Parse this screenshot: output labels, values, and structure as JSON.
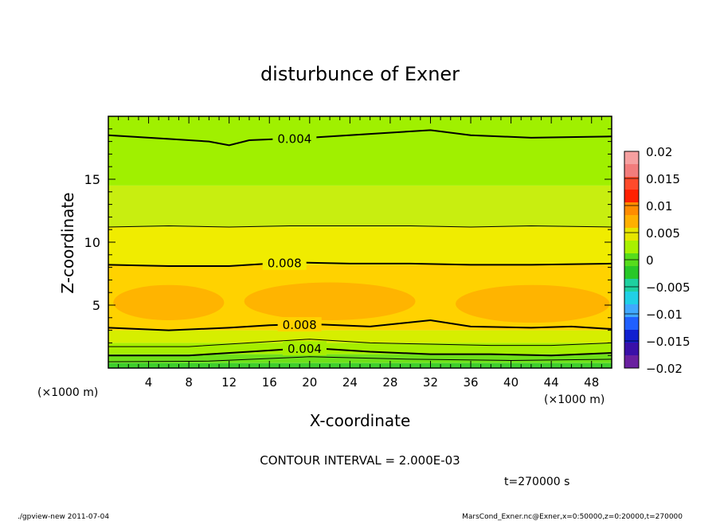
{
  "chart_data": {
    "type": "heatmap",
    "title": "disturbunce of Exner",
    "xlabel": "X-coordinate",
    "ylabel": "Z-coordinate",
    "x_unit": "(×1000 m)",
    "y_unit": "(×1000 m)",
    "xlim": [
      0,
      50
    ],
    "ylim": [
      0,
      20
    ],
    "x_ticks": [
      "4",
      "8",
      "12",
      "16",
      "20",
      "24",
      "28",
      "32",
      "36",
      "40",
      "44",
      "48"
    ],
    "y_ticks": [
      "5",
      "10",
      "15"
    ],
    "contour_interval": "CONTOUR INTERVAL = 2.000E-03",
    "time_label": "t=270000 s",
    "contour_labels": [
      "0.004",
      "0.008",
      "0.008",
      "0.004"
    ],
    "colorbar": {
      "tick_labels": [
        "0.02",
        "0.015",
        "0.01",
        "0.005",
        "0",
        "−0.005",
        "−0.01",
        "−0.015",
        "−0.02"
      ],
      "levels": [
        0.02,
        0.0175,
        0.015,
        0.0125,
        0.01,
        0.0075,
        0.005,
        0.0025,
        0,
        -0.0025,
        -0.005,
        -0.0075,
        -0.01,
        -0.0125,
        -0.015,
        -0.0175,
        -0.02
      ],
      "colors": [
        "#f6a0a0",
        "#f27c7c",
        "#ff4a2a",
        "#ff2000",
        "#ff8c00",
        "#ffb000",
        "#e6e600",
        "#a8f000",
        "#56dc1c",
        "#28c828",
        "#1ed0a0",
        "#20d0e6",
        "#40a8ff",
        "#2060ff",
        "#1020d0",
        "#3a10a8",
        "#6a20a0"
      ]
    },
    "bands": [
      {
        "z_from": 0.0,
        "z_to": 0.4,
        "value": 0.002,
        "color": "#3ecf2c"
      },
      {
        "z_from": 0.4,
        "z_to": 1.1,
        "value": 0.003,
        "color": "#6ee01a"
      },
      {
        "z_from": 1.1,
        "z_to": 2.0,
        "value": 0.005,
        "color": "#a6ee00"
      },
      {
        "z_from": 2.0,
        "z_to": 3.0,
        "value": 0.006,
        "color": "#d6ee00"
      },
      {
        "z_from": 3.0,
        "z_to": 8.2,
        "value": 0.009,
        "color": "#ffd200"
      },
      {
        "z_from": 8.2,
        "z_to": 11.2,
        "value": 0.007,
        "color": "#f0ec00"
      },
      {
        "z_from": 11.2,
        "z_to": 14.5,
        "value": 0.005,
        "color": "#c8ee10"
      },
      {
        "z_from": 14.5,
        "z_to": 20.0,
        "value": 0.004,
        "color": "#a0f000"
      }
    ],
    "patches": [
      {
        "x_from": 0.5,
        "x_to": 11.5,
        "z_from": 3.8,
        "z_to": 6.6,
        "value": 0.0105,
        "color": "#ffb400"
      },
      {
        "x_from": 13.5,
        "x_to": 30.5,
        "z_from": 3.8,
        "z_to": 6.8,
        "value": 0.0105,
        "color": "#ffb400"
      },
      {
        "x_from": 34.5,
        "x_to": 49.8,
        "z_from": 3.6,
        "z_to": 6.6,
        "value": 0.0105,
        "color": "#ffb400"
      }
    ],
    "contours": [
      {
        "value": 0.002,
        "heavy": false,
        "x": [
          0,
          10,
          20,
          30,
          40,
          50
        ],
        "z": [
          0.5,
          0.55,
          0.9,
          0.7,
          0.6,
          0.7
        ]
      },
      {
        "value": 0.004,
        "heavy": true,
        "label": "0.004",
        "x": [
          0,
          8,
          14,
          20,
          26,
          32,
          38,
          44,
          50
        ],
        "z": [
          1.0,
          1.0,
          1.3,
          1.6,
          1.3,
          1.1,
          1.1,
          1.0,
          1.2
        ]
      },
      {
        "value": 0.006,
        "heavy": false,
        "x": [
          0,
          8,
          14,
          20,
          26,
          32,
          38,
          44,
          50
        ],
        "z": [
          1.7,
          1.7,
          2.0,
          2.3,
          2.0,
          1.9,
          1.8,
          1.8,
          2.0
        ]
      },
      {
        "value": 0.008,
        "heavy": true,
        "label": "0.008",
        "x": [
          0,
          6,
          12,
          16,
          20,
          26,
          32,
          36,
          42,
          46,
          50
        ],
        "z": [
          3.2,
          3.0,
          3.2,
          3.4,
          3.5,
          3.3,
          3.8,
          3.3,
          3.2,
          3.3,
          3.1
        ]
      },
      {
        "value": 0.008,
        "heavy": true,
        "label": "0.008",
        "x": [
          0,
          6,
          12,
          18,
          24,
          30,
          36,
          42,
          50
        ],
        "z": [
          8.2,
          8.1,
          8.1,
          8.4,
          8.3,
          8.3,
          8.2,
          8.2,
          8.3
        ]
      },
      {
        "value": 0.006,
        "heavy": false,
        "x": [
          0,
          6,
          12,
          18,
          24,
          30,
          36,
          42,
          50
        ],
        "z": [
          11.2,
          11.3,
          11.2,
          11.3,
          11.3,
          11.3,
          11.2,
          11.3,
          11.2
        ]
      },
      {
        "value": 0.004,
        "heavy": true,
        "label": "0.004",
        "x": [
          0,
          6,
          10,
          12,
          14,
          20,
          26,
          32,
          36,
          42,
          50
        ],
        "z": [
          18.5,
          18.2,
          18.0,
          17.7,
          18.1,
          18.3,
          18.6,
          18.9,
          18.5,
          18.3,
          18.4
        ]
      }
    ]
  },
  "footer": {
    "left": "./gpview-new   2011-07-04",
    "right": "MarsCond_Exner.nc@Exner,x=0:50000,z=0:20000,t=270000"
  }
}
